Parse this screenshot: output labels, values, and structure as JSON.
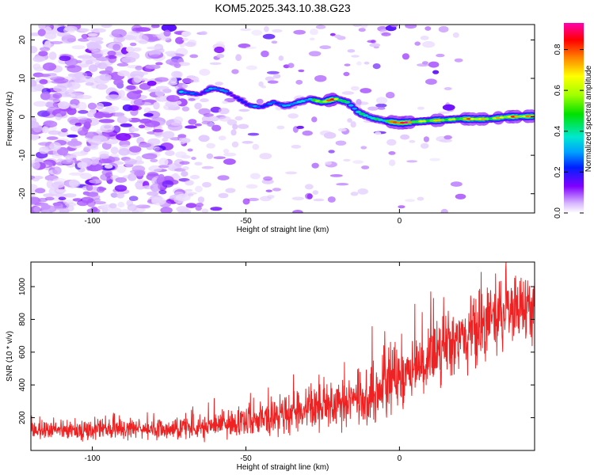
{
  "title": "KOM5.2025.343.10.38.G23",
  "colors": {
    "series": "#ee2222",
    "low_amplitude": "#8000ff",
    "frame": "#000000"
  },
  "chart_data": [
    {
      "type": "heatmap",
      "name": "spectrogram",
      "xlabel": "Height of straight line (km)",
      "ylabel": "Frequency (Hz)",
      "xlim": [
        -120,
        44
      ],
      "ylim": [
        -25,
        24
      ],
      "xticks": [
        -100,
        -50,
        0
      ],
      "yticks": [
        -20,
        -10,
        0,
        10,
        20
      ],
      "colorbar": {
        "label": "Normalized spectral amplitude",
        "range": [
          0,
          0.93
        ],
        "ticks": [
          0.0,
          0.2,
          0.4,
          0.6,
          0.8
        ],
        "tick_labels": [
          "0.0",
          "0.2",
          "0.4",
          "0.6",
          "0.8"
        ]
      },
      "ridge": {
        "x": [
          -71,
          -65,
          -61,
          -57,
          -53,
          -49,
          -45,
          -41,
          -37,
          -33,
          -29,
          -25,
          -21,
          -17,
          -13,
          -9,
          -5,
          0,
          5,
          10,
          15,
          20,
          25,
          30,
          35,
          40,
          44
        ],
        "frequency": [
          6.5,
          5.8,
          7.5,
          6.8,
          5.0,
          3.0,
          2.5,
          3.8,
          2.8,
          3.8,
          4.6,
          3.8,
          4.7,
          3.8,
          1.0,
          -0.3,
          -1.0,
          -1.6,
          -1.3,
          -1.0,
          -0.8,
          -0.5,
          -0.6,
          -0.5,
          0.0,
          0.1,
          0.2
        ],
        "amplitude": [
          0.33,
          0.28,
          0.32,
          0.28,
          0.25,
          0.25,
          0.28,
          0.35,
          0.3,
          0.35,
          0.55,
          0.62,
          0.85,
          0.5,
          0.38,
          0.45,
          0.6,
          0.9,
          0.85,
          0.6,
          0.7,
          0.75,
          0.7,
          0.85,
          0.65,
          0.9,
          0.93
        ]
      },
      "noise": {
        "x_range": [
          -120,
          20
        ],
        "dense_until": -70,
        "typical_amplitude": 0.03
      }
    },
    {
      "type": "line",
      "name": "snr",
      "xlabel": "Height of straight line (km)",
      "ylabel": "SNR (10 * v/v)",
      "xlim": [
        -120,
        44
      ],
      "ylim": [
        0,
        1150
      ],
      "xticks": [
        -100,
        -50,
        0
      ],
      "yticks": [
        200,
        400,
        600,
        800,
        1000
      ],
      "series": [
        {
          "name": "SNR",
          "trend_x": [
            -120,
            -100,
            -80,
            -70,
            -60,
            -50,
            -40,
            -30,
            -20,
            -10,
            0,
            10,
            20,
            30,
            40,
            44
          ],
          "trend_y": [
            120,
            125,
            130,
            140,
            155,
            180,
            210,
            250,
            290,
            350,
            450,
            560,
            700,
            800,
            880,
            900
          ],
          "spread_y": [
            40,
            45,
            45,
            50,
            60,
            70,
            85,
            100,
            115,
            130,
            150,
            160,
            165,
            170,
            175,
            175
          ],
          "sample_step_km": 0.1,
          "max": 1150,
          "min": 0
        }
      ]
    }
  ]
}
